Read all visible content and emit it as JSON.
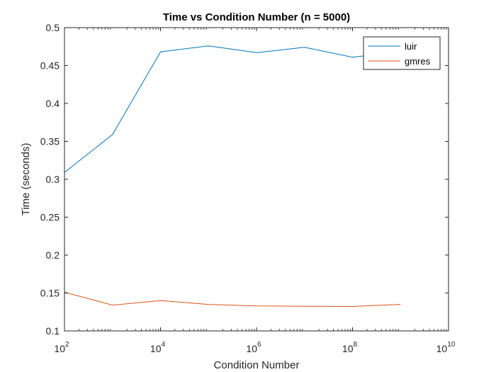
{
  "chart_data": {
    "type": "line",
    "title": "Time vs Condition Number (n = 5000)",
    "xlabel": "Condition Number",
    "ylabel": "Time (seconds)",
    "x_scale": "log",
    "xlim": [
      100,
      10000000000
    ],
    "ylim": [
      0.1,
      0.5
    ],
    "x_ticks": [
      {
        "value": 100,
        "base": "10",
        "exp": "2"
      },
      {
        "value": 10000,
        "base": "10",
        "exp": "4"
      },
      {
        "value": 1000000,
        "base": "10",
        "exp": "6"
      },
      {
        "value": 100000000,
        "base": "10",
        "exp": "8"
      },
      {
        "value": 10000000000,
        "base": "10",
        "exp": "10"
      }
    ],
    "y_ticks": [
      "0.1",
      "0.15",
      "0.2",
      "0.25",
      "0.3",
      "0.35",
      "0.4",
      "0.45",
      "0.5"
    ],
    "x": [
      100,
      1000,
      10000,
      100000,
      1000000,
      10000000,
      100000000,
      1000000000
    ],
    "series": [
      {
        "name": "luir",
        "color": "#0072BD",
        "values": [
          0.309,
          0.359,
          0.468,
          0.476,
          0.467,
          0.474,
          0.461,
          0.468
        ]
      },
      {
        "name": "gmres",
        "color": "#D95319",
        "values": [
          0.151,
          0.134,
          0.14,
          0.135,
          0.133,
          0.1325,
          0.1322,
          0.135
        ]
      }
    ],
    "grid": false,
    "legend_position": "top-right"
  }
}
